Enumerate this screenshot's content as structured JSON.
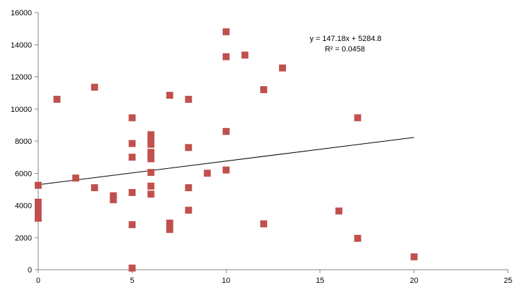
{
  "chart_data": {
    "type": "scatter",
    "title": "",
    "xlabel": "",
    "ylabel": "",
    "xlim": [
      0,
      25
    ],
    "ylim": [
      0,
      16000
    ],
    "x_ticks": [
      0,
      5,
      10,
      15,
      20,
      25
    ],
    "y_ticks": [
      0,
      2000,
      4000,
      6000,
      8000,
      10000,
      12000,
      14000,
      16000
    ],
    "x_tick_labels": [
      "0",
      "5",
      "10",
      "15",
      "20",
      "25"
    ],
    "y_tick_labels": [
      "0",
      "2000",
      "4000",
      "6000",
      "8000",
      "10000",
      "12000",
      "14000",
      "16000"
    ],
    "grid": false,
    "legend": "none",
    "marker_color": "#C0504D",
    "trendline_color": "#000000",
    "points": [
      {
        "x": 0,
        "y": 5250
      },
      {
        "x": 0,
        "y": 4200
      },
      {
        "x": 0,
        "y": 4000
      },
      {
        "x": 0,
        "y": 3800
      },
      {
        "x": 0,
        "y": 3600
      },
      {
        "x": 0,
        "y": 3400
      },
      {
        "x": 0,
        "y": 3200
      },
      {
        "x": 1,
        "y": 10600
      },
      {
        "x": 2,
        "y": 5700
      },
      {
        "x": 3,
        "y": 11350
      },
      {
        "x": 3,
        "y": 5100
      },
      {
        "x": 4,
        "y": 4600
      },
      {
        "x": 4,
        "y": 4350
      },
      {
        "x": 5,
        "y": 9450
      },
      {
        "x": 5,
        "y": 7850
      },
      {
        "x": 5,
        "y": 7000
      },
      {
        "x": 5,
        "y": 4800
      },
      {
        "x": 5,
        "y": 2800
      },
      {
        "x": 5,
        "y": 100
      },
      {
        "x": 6,
        "y": 8400
      },
      {
        "x": 6,
        "y": 8200
      },
      {
        "x": 6,
        "y": 8000
      },
      {
        "x": 6,
        "y": 7800
      },
      {
        "x": 6,
        "y": 7300
      },
      {
        "x": 6,
        "y": 7100
      },
      {
        "x": 6,
        "y": 6900
      },
      {
        "x": 6,
        "y": 6050
      },
      {
        "x": 6,
        "y": 5200
      },
      {
        "x": 6,
        "y": 4700
      },
      {
        "x": 7,
        "y": 10850
      },
      {
        "x": 7,
        "y": 2900
      },
      {
        "x": 7,
        "y": 2700
      },
      {
        "x": 7,
        "y": 2500
      },
      {
        "x": 8,
        "y": 10600
      },
      {
        "x": 8,
        "y": 7600
      },
      {
        "x": 8,
        "y": 5100
      },
      {
        "x": 8,
        "y": 3700
      },
      {
        "x": 9,
        "y": 6000
      },
      {
        "x": 10,
        "y": 14800
      },
      {
        "x": 10,
        "y": 13250
      },
      {
        "x": 10,
        "y": 8600
      },
      {
        "x": 10,
        "y": 6200
      },
      {
        "x": 11,
        "y": 13350
      },
      {
        "x": 12,
        "y": 11200
      },
      {
        "x": 12,
        "y": 2850
      },
      {
        "x": 13,
        "y": 12550
      },
      {
        "x": 16,
        "y": 3650
      },
      {
        "x": 17,
        "y": 9450
      },
      {
        "x": 17,
        "y": 1950
      },
      {
        "x": 20,
        "y": 800
      }
    ],
    "trendline": {
      "type": "linear",
      "slope": 147.18,
      "intercept": 5284.8,
      "x_range": [
        0,
        20
      ],
      "equation_label": "y = 147.18x + 5284.8",
      "r2_label": "R² = 0.0458"
    }
  }
}
